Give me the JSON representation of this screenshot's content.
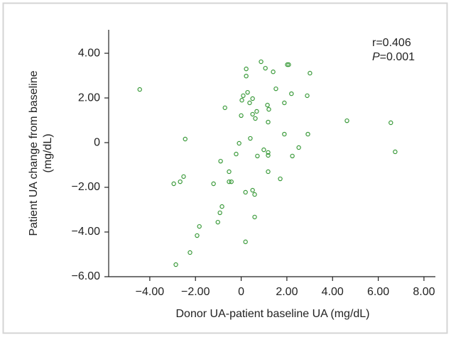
{
  "chart_data": {
    "type": "scatter",
    "x_label": "Donor UA-patient baseline UA (mg/dL)",
    "y_label": [
      "Patient UA change from baseline",
      "(mg/dL)"
    ],
    "annotations": [
      "r=0.406",
      "P",
      "=0.001"
    ],
    "color": "#3a9a3a",
    "xlim": [
      -5.8,
      8.5
    ],
    "ylim": [
      -6,
      5.05
    ],
    "xticks": [
      {
        "value": -4,
        "label": "−4.00"
      },
      {
        "value": -2,
        "label": "−2.00"
      },
      0,
      {
        "value": 2,
        "label": "2.00"
      },
      {
        "value": 4,
        "label": "4.00"
      },
      {
        "value": 6,
        "label": "6.00"
      },
      {
        "value": 8,
        "label": "8.00"
      }
    ],
    "yticks": [
      {
        "value": -6,
        "label": "−6.00"
      },
      {
        "value": -4,
        "label": "−4.00"
      },
      {
        "value": -2,
        "label": "−2.00"
      },
      0,
      {
        "value": 2,
        "label": "2.00"
      },
      {
        "value": 4,
        "label": "4.00"
      }
    ],
    "x": [
      -4.44,
      -2.45,
      -2.52,
      -2.67,
      -2.95,
      -1.21,
      -0.9,
      -0.71,
      -0.84,
      -0.93,
      -1.02,
      -1.83,
      -1.93,
      -2.24,
      -2.86,
      0.19,
      -0.53,
      -0.53,
      -0.43,
      -0.22,
      -0.09,
      0,
      0.03,
      0.09,
      0.22,
      0.22,
      0.28,
      0.37,
      0.5,
      0.5,
      0.62,
      0.4,
      0.19,
      0.5,
      0.59,
      0.59,
      0.71,
      0.68,
      0.87,
      1.06,
      1.4,
      1.52,
      1.15,
      1.18,
      1.21,
      0.99,
      1.18,
      1.18,
      1.18,
      1.71,
      1.89,
      1.89,
      2.02,
      2.08,
      2.2,
      2.24,
      2.52,
      2.89,
      2.92,
      3.01,
      4.63,
      6.55,
      6.74
    ],
    "values": [
      2.38,
      0.16,
      -1.52,
      -1.75,
      -1.84,
      -1.84,
      -0.83,
      1.56,
      -2.86,
      -3.14,
      -3.56,
      -3.75,
      -4.16,
      -4.92,
      -5.46,
      -4.44,
      -1.3,
      -1.75,
      -1.75,
      -0.51,
      -0.03,
      1.21,
      1.9,
      2.1,
      3.3,
      2.98,
      2.25,
      1.78,
      1.27,
      1.97,
      1.08,
      0.19,
      -2.22,
      -2.13,
      -2.32,
      -3.33,
      -0.6,
      1.4,
      3.62,
      3.33,
      3.17,
      2.41,
      1.68,
      0.92,
      1.49,
      -0.32,
      -0.44,
      -0.57,
      -1.3,
      -1.62,
      1.78,
      0.38,
      3.49,
      3.49,
      2.19,
      -0.6,
      -0.22,
      2.1,
      0.38,
      3.11,
      0.98,
      0.89,
      -0.41
    ]
  }
}
